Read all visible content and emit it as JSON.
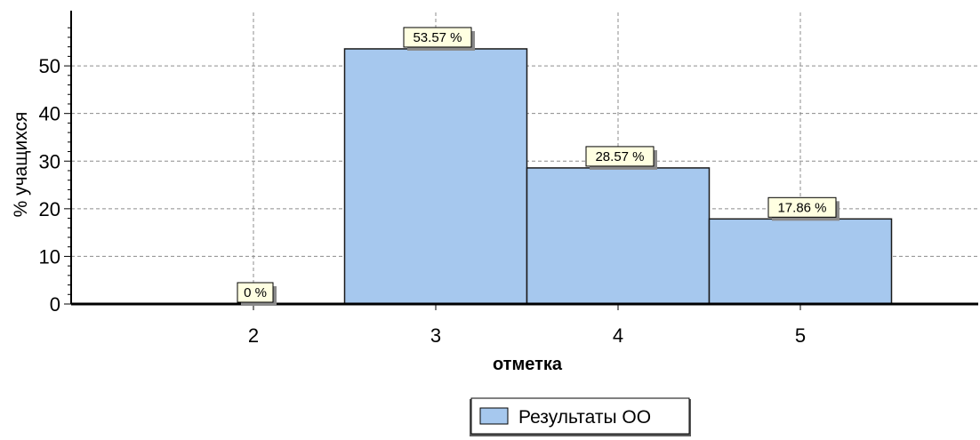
{
  "chart_data": {
    "type": "bar",
    "categories": [
      "2",
      "3",
      "4",
      "5"
    ],
    "series": [
      {
        "name": "Результаты ОО",
        "values": [
          0,
          53.57,
          28.57,
          17.86
        ]
      }
    ],
    "data_labels": [
      "0 %",
      "53.57 %",
      "28.57 %",
      "17.86 %"
    ],
    "title": "",
    "xlabel": "отметка",
    "ylabel": "% учащихся",
    "ylim": [
      0,
      59
    ],
    "yticks": [
      0,
      10,
      20,
      30,
      40,
      50
    ],
    "grid": true,
    "legend_position": "bottom-center",
    "colors": {
      "bar_fill": "#a6c8ee",
      "bar_stroke": "#1a1a1a",
      "grid": "#8c8c8c",
      "label_box": "#ffffe1",
      "label_shadow": "#8a8a8a"
    }
  }
}
